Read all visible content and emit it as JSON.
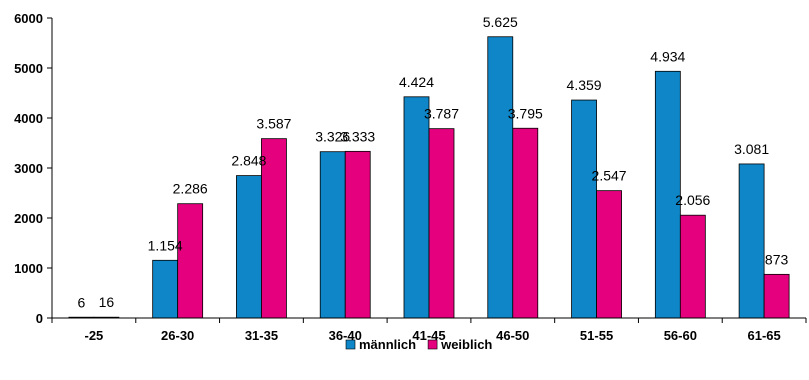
{
  "chart_data": {
    "type": "bar",
    "categories": [
      "-25",
      "26-30",
      "31-35",
      "36-40",
      "41-45",
      "46-50",
      "51-55",
      "56-60",
      "61-65"
    ],
    "series": [
      {
        "name": "männlich",
        "color": "#0E86C8",
        "values": [
          6,
          1154,
          2848,
          3326,
          4424,
          5625,
          4359,
          4934,
          3081
        ],
        "labels": [
          "6",
          "1.154",
          "2.848",
          "3.326",
          "4.424",
          "5.625",
          "4.359",
          "4.934",
          "3.081"
        ]
      },
      {
        "name": "weiblich",
        "color": "#E5007E",
        "values": [
          16,
          2286,
          3587,
          3333,
          3787,
          3795,
          2547,
          2056,
          873
        ],
        "labels": [
          "16",
          "2.286",
          "3.587",
          "3.333",
          "3.787",
          "3.795",
          "2.547",
          "2.056",
          "873"
        ]
      }
    ],
    "ylim": [
      0,
      6000
    ],
    "yticks": [
      0,
      1000,
      2000,
      3000,
      4000,
      5000,
      6000
    ],
    "ytick_labels": [
      "0",
      "1000",
      "2000",
      "3000",
      "4000",
      "5000",
      "6000"
    ],
    "grid": false,
    "legend_position": "bottom-center"
  }
}
